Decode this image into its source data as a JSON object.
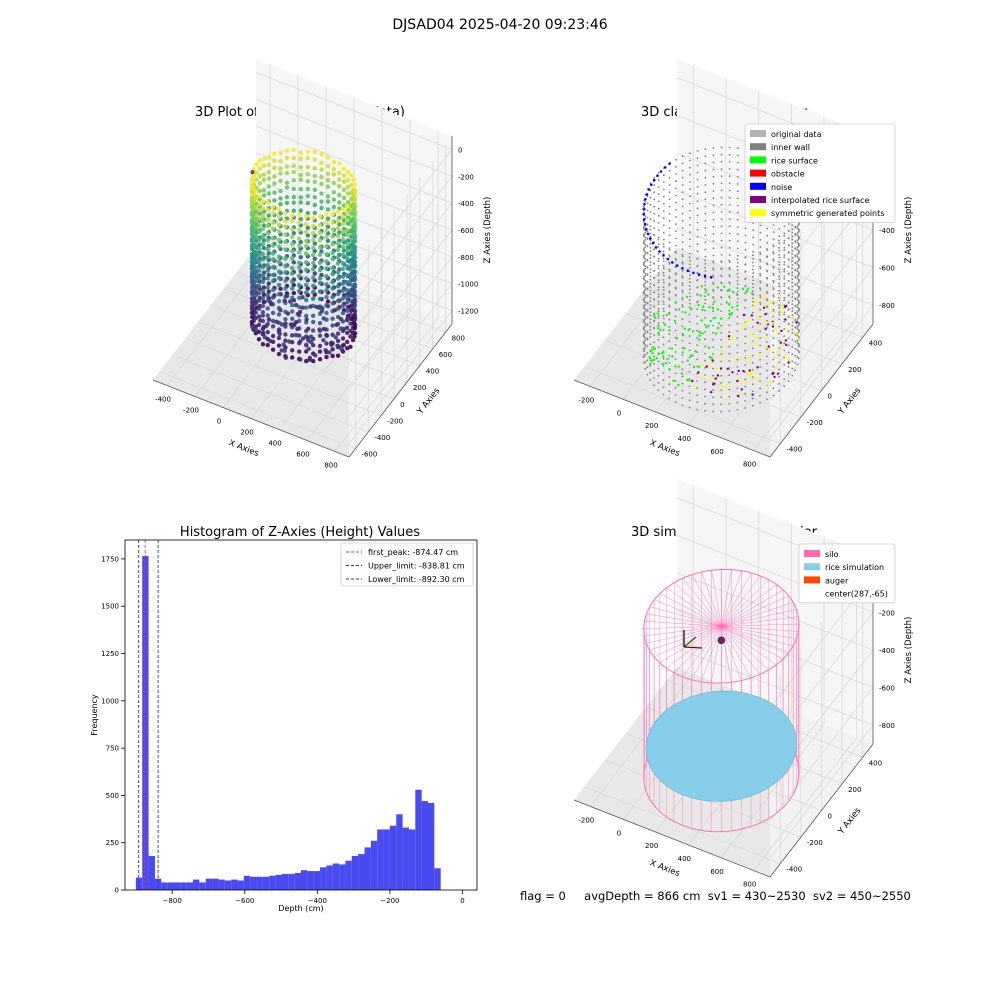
{
  "figure": {
    "suptitle": "DJSAD04 2025-04-20 09:23:46",
    "footer": {
      "flag": "flag = 0",
      "avg_depth": "avgDepth = 866 cm",
      "sv1": "sv1 = 430~2530",
      "sv2": "sv2 = 450~2550"
    }
  },
  "colors": {
    "grid": "#d9d9d9",
    "pane": "#f2f2f2",
    "histogram_bar": "#4a4af2",
    "first_peak_line": "#e33b3b",
    "limit_line": "#2b2bd9",
    "silo": "#ff69b4",
    "rice_simulation": "#87ceeb",
    "auger": "#ff4500",
    "inner_wall": "#808080",
    "rice_surface": "#00ff00",
    "obstacle": "#ff0000",
    "noise": "#0000ff",
    "interpolated": "#800080",
    "symmetric": "#ffff00",
    "original": "#b3b3b3"
  },
  "chart_data": [
    {
      "id": "raw",
      "type": "scatter3d",
      "title": "3D Plot of Silo Interior(row data)",
      "xlabel": "X Axies",
      "ylabel": "Y Axies",
      "zlabel": "Z Axies (Depth)",
      "xticks": [
        "-400",
        "-200",
        "0",
        "200",
        "400",
        "600",
        "800"
      ],
      "yticks": [
        "-600",
        "-400",
        "-200",
        "0",
        "200",
        "400",
        "600",
        "800"
      ],
      "zticks": [
        "-1200",
        "-1000",
        "-800",
        "-600",
        "-400",
        "-200",
        "0"
      ],
      "xlim": [
        -450,
        800
      ],
      "ylim": [
        -650,
        800
      ],
      "zlim": [
        -1250,
        0
      ],
      "cylinder": {
        "cx": 170,
        "cy": 100,
        "r": 300,
        "z_top": -150,
        "z_bottom": -1100
      },
      "colormap": "viridis"
    },
    {
      "id": "classify",
      "type": "scatter3d",
      "title": "3D classify of Silo Interior",
      "xlabel": "X Axies",
      "ylabel": "Y Axies",
      "zlabel": "Z Axies (Depth)",
      "xticks": [
        "-200",
        "0",
        "200",
        "400",
        "600",
        "800"
      ],
      "yticks": [
        "-400",
        "-200",
        "0",
        "200",
        "400"
      ],
      "zticks": [
        "-800",
        "-600",
        "-400",
        "-200",
        "0"
      ],
      "xlim": [
        -250,
        800
      ],
      "ylim": [
        -500,
        450
      ],
      "zlim": [
        -900,
        100
      ],
      "cylinder": {
        "cx": 287,
        "cy": -65,
        "r": 360,
        "z_top": -80,
        "z_bottom": -880
      },
      "legend": [
        {
          "label": "original data",
          "color": "#b3b3b3"
        },
        {
          "label": "inner wall",
          "color": "#808080"
        },
        {
          "label": "rice surface",
          "color": "#00ff00"
        },
        {
          "label": "obstacle",
          "color": "#ff0000"
        },
        {
          "label": "noise",
          "color": "#0000ff"
        },
        {
          "label": "interpolated rice surface",
          "color": "#800080"
        },
        {
          "label": "symmetric generated points",
          "color": "#ffff00"
        }
      ]
    },
    {
      "id": "histogram",
      "type": "bar",
      "title": "Histogram of Z-Axies (Height) Values",
      "xlabel": "Depth (cm)",
      "ylabel": "Frequency",
      "xlim": [
        -930,
        40
      ],
      "ylim": [
        0,
        1850
      ],
      "xticks": [
        -800,
        -600,
        -400,
        -200,
        0
      ],
      "yticks": [
        0,
        250,
        500,
        750,
        1000,
        1250,
        1500,
        1750
      ],
      "bin_start": -900,
      "bin_width": 17.5,
      "counts": [
        65,
        1765,
        180,
        60,
        40,
        40,
        40,
        40,
        40,
        55,
        40,
        60,
        60,
        55,
        50,
        55,
        50,
        75,
        70,
        70,
        70,
        75,
        80,
        85,
        85,
        90,
        105,
        100,
        100,
        120,
        130,
        140,
        135,
        155,
        180,
        190,
        225,
        260,
        320,
        320,
        340,
        400,
        330,
        320,
        530,
        470,
        460,
        115
      ],
      "vlines": [
        {
          "value": -874.47,
          "label": "first_peak: -874.47 cm",
          "color": "#e33b3b"
        },
        {
          "value": -838.81,
          "label": "Upper_limit: -838.81 cm",
          "color": "#2b2bd9"
        },
        {
          "value": -892.3,
          "label": "Lower_limit: -892.30 cm",
          "color": "#2b2bd9"
        }
      ]
    },
    {
      "id": "simulation",
      "type": "surface3d",
      "title": "3D simulation of Silo Interior",
      "xlabel": "X Axies",
      "ylabel": "Y Axies",
      "zlabel": "Z Axies (Depth)",
      "xticks": [
        "-200",
        "0",
        "200",
        "400",
        "600",
        "800"
      ],
      "yticks": [
        "-400",
        "-200",
        "0",
        "200",
        "400"
      ],
      "zticks": [
        "-800",
        "-600",
        "-400",
        "-200",
        "0"
      ],
      "xlim": [
        -250,
        800
      ],
      "ylim": [
        -500,
        450
      ],
      "zlim": [
        -900,
        150
      ],
      "cylinder": {
        "cx": 287,
        "cy": -65,
        "r": 360,
        "z_top": -50,
        "z_bottom": -880
      },
      "rice_level": -720,
      "legend": [
        {
          "label": "silo",
          "color": "#ff69b4"
        },
        {
          "label": "rice simulation",
          "color": "#87ceeb"
        },
        {
          "label": "auger",
          "color": "#ff4500"
        },
        {
          "label": "center(287,-65)",
          "color": ""
        }
      ]
    }
  ]
}
